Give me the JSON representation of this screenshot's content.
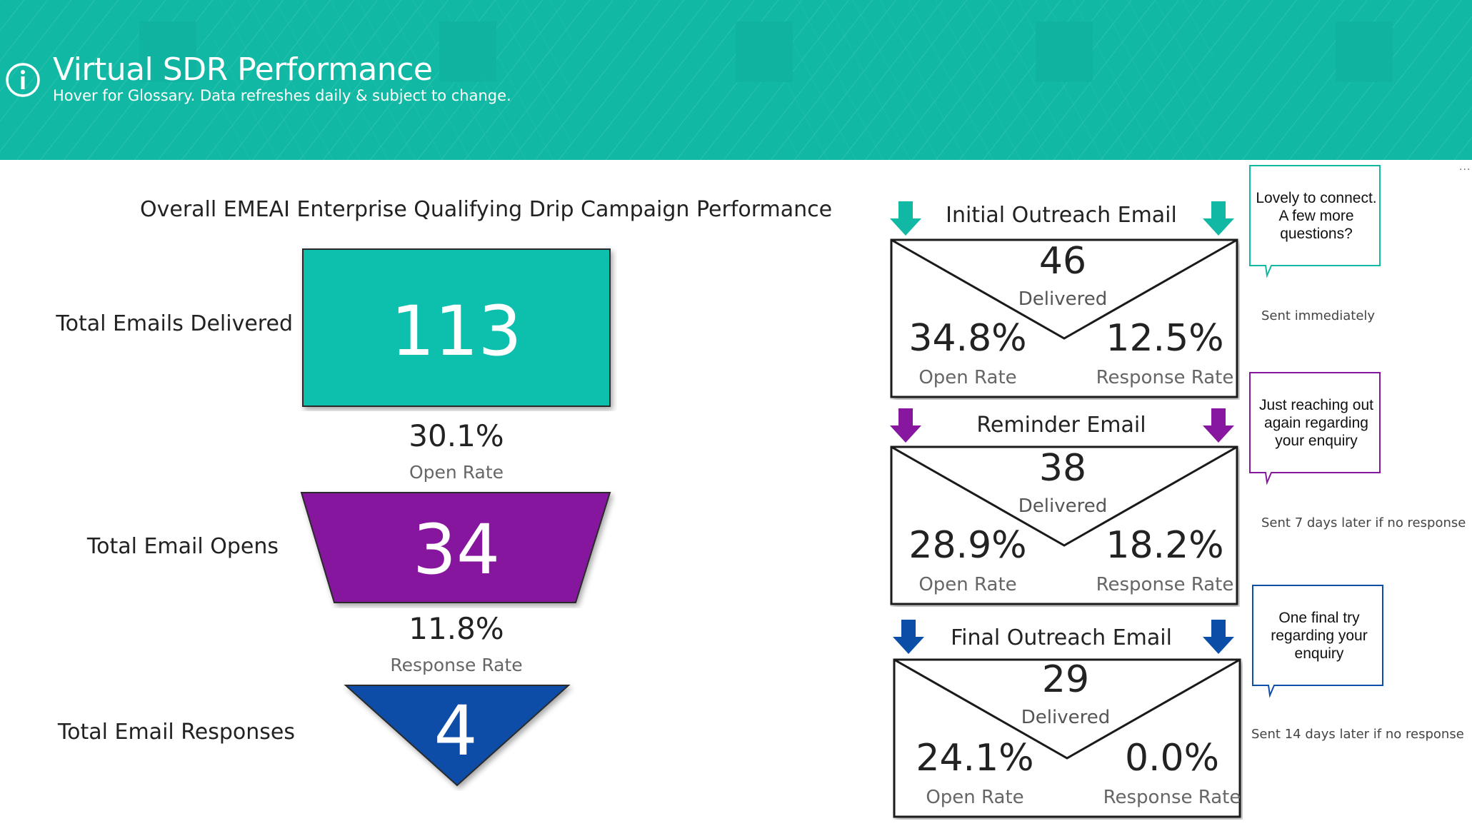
{
  "header": {
    "title": "Virtual SDR Performance",
    "subtitle": "Hover for Glossary. Data refreshes daily & subject to change.",
    "bg_color": "#11b8a3",
    "icon": "info-icon"
  },
  "overall": {
    "title": "Overall EMEAI Enterprise Qualifying Drip Campaign Performance",
    "delivered_label": "Total Emails Delivered",
    "delivered_value": "113",
    "open_rate_value": "30.1%",
    "open_rate_label": "Open Rate",
    "opens_label": "Total Email Opens",
    "opens_value": "34",
    "response_rate_value": "11.8%",
    "response_rate_label": "Response Rate",
    "responses_label": "Total Email Responses",
    "responses_value": "4",
    "colors": {
      "delivered": "#0dbfad",
      "opens": "#86179e",
      "responses": "#0a4ea8"
    }
  },
  "emails": [
    {
      "title": "Initial Outreach Email",
      "delivered": "46",
      "delivered_label": "Delivered",
      "open_rate": "34.8%",
      "open_rate_label": "Open Rate",
      "response_rate": "12.5%",
      "response_rate_label": "Response Rate",
      "bubble": "Lovely to connect. A few more questions?",
      "timing": "Sent immediately",
      "arrow_color": "#11b8a3",
      "arrow_icon": "arrow-down-icon"
    },
    {
      "title": "Reminder Email",
      "delivered": "38",
      "delivered_label": "Delivered",
      "open_rate": "28.9%",
      "open_rate_label": "Open Rate",
      "response_rate": "18.2%",
      "response_rate_label": "Response Rate",
      "bubble": "Just reaching out again regarding your enquiry",
      "timing": "Sent 7 days later if no response",
      "arrow_color": "#86179e",
      "arrow_icon": "arrow-down-icon"
    },
    {
      "title": "Final Outreach Email",
      "delivered": "29",
      "delivered_label": "Delivered",
      "open_rate": "24.1%",
      "open_rate_label": "Open Rate",
      "response_rate": "0.0%",
      "response_rate_label": "Response Rate",
      "bubble": "One final try regarding your enquiry",
      "timing": "Sent 14 days later if no response",
      "arrow_color": "#0a4ea8",
      "arrow_icon": "arrow-down-icon"
    }
  ],
  "more_options": "..."
}
